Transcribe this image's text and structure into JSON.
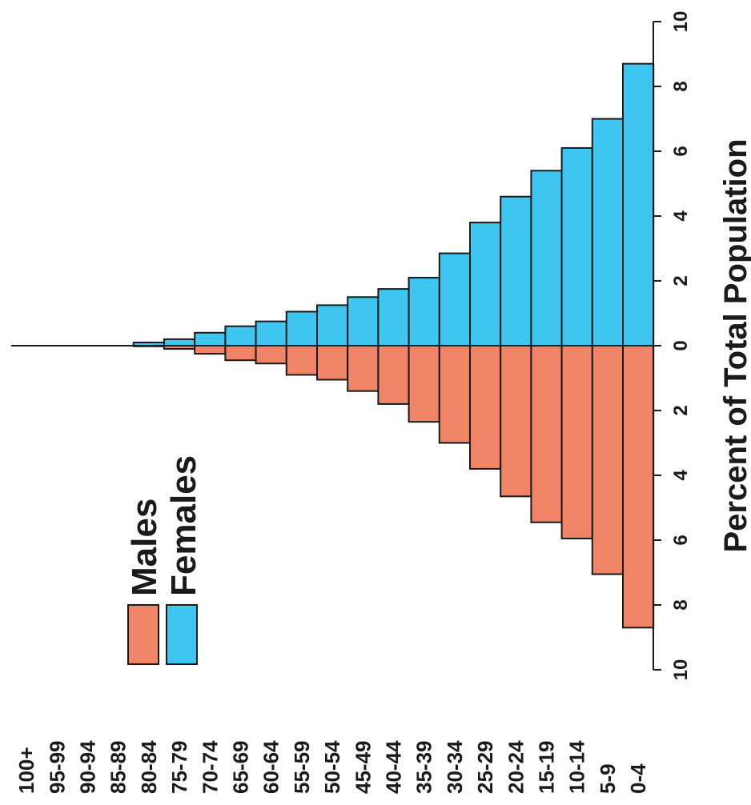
{
  "chart_data": {
    "type": "bar",
    "orientation": "population-pyramid",
    "categories": [
      "100+",
      "95-99",
      "90-94",
      "85-89",
      "80-84",
      "75-79",
      "70-74",
      "65-69",
      "60-64",
      "55-59",
      "50-54",
      "45-49",
      "40-44",
      "35-39",
      "30-34",
      "25-29",
      "20-24",
      "15-19",
      "10-14",
      "5-9",
      "0-4"
    ],
    "series": [
      {
        "name": "Males",
        "color": "#f08467",
        "values": [
          0,
          0,
          0,
          0,
          0.02,
          0.1,
          0.25,
          0.45,
          0.55,
          0.9,
          1.05,
          1.4,
          1.8,
          2.35,
          3.0,
          3.8,
          4.65,
          5.45,
          5.95,
          7.05,
          8.7
        ]
      },
      {
        "name": "Females",
        "color": "#3ec6f0",
        "values": [
          0,
          0,
          0,
          0,
          0.1,
          0.2,
          0.4,
          0.6,
          0.75,
          1.05,
          1.25,
          1.5,
          1.75,
          2.1,
          2.85,
          3.8,
          4.6,
          5.4,
          6.1,
          7.0,
          8.7
        ]
      }
    ],
    "xlabel": "Percent of Total Population",
    "ylabel": "",
    "xlim": [
      -10,
      10
    ],
    "ticks": [
      10,
      8,
      6,
      4,
      2,
      0,
      2,
      4,
      6,
      8,
      10
    ],
    "legend": [
      "Males",
      "Females"
    ],
    "legend_position": "center-left",
    "grid": false
  }
}
